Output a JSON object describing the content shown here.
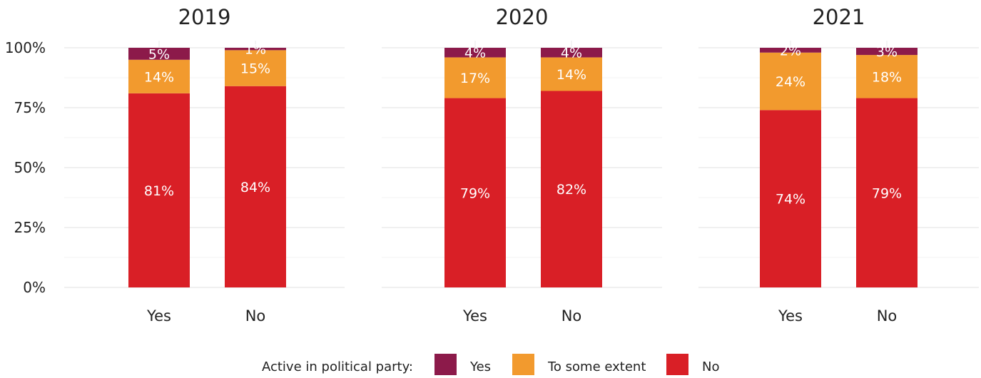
{
  "chart_data": {
    "type": "bar",
    "stacked": true,
    "y_axis": {
      "ylim": [
        0,
        100
      ],
      "ticks": [
        0,
        25,
        50,
        75,
        100
      ],
      "tick_labels": [
        "0%",
        "25%",
        "50%",
        "75%",
        "100%"
      ]
    },
    "grid": true,
    "categories": [
      "Yes",
      "No"
    ],
    "panels": [
      {
        "title": "2019",
        "series": [
          {
            "name": "No",
            "values": [
              81,
              84
            ],
            "labels": [
              "81%",
              "84%"
            ]
          },
          {
            "name": "To some extent",
            "values": [
              14,
              15
            ],
            "labels": [
              "14%",
              "15%"
            ]
          },
          {
            "name": "Yes",
            "values": [
              5,
              1
            ],
            "labels": [
              "5%",
              "1%"
            ]
          }
        ]
      },
      {
        "title": "2020",
        "series": [
          {
            "name": "No",
            "values": [
              79,
              82
            ],
            "labels": [
              "79%",
              "82%"
            ]
          },
          {
            "name": "To some extent",
            "values": [
              17,
              14
            ],
            "labels": [
              "17%",
              "14%"
            ]
          },
          {
            "name": "Yes",
            "values": [
              4,
              4
            ],
            "labels": [
              "4%",
              "4%"
            ]
          }
        ]
      },
      {
        "title": "2021",
        "series": [
          {
            "name": "No",
            "values": [
              74,
              79
            ],
            "labels": [
              "74%",
              "79%"
            ]
          },
          {
            "name": "To some extent",
            "values": [
              24,
              18
            ],
            "labels": [
              "24%",
              "18%"
            ]
          },
          {
            "name": "Yes",
            "values": [
              2,
              3
            ],
            "labels": [
              "2%",
              "3%"
            ]
          }
        ]
      }
    ],
    "legend": {
      "position": "bottom",
      "title": "Active in political party:",
      "entries": [
        {
          "name": "Yes",
          "color": "#8c1a4a"
        },
        {
          "name": "To some extent",
          "color": "#f29a2e"
        },
        {
          "name": "No",
          "color": "#d91f26"
        }
      ]
    },
    "colors": {
      "Yes": "#8c1a4a",
      "To some extent": "#f29a2e",
      "No": "#d91f26"
    }
  }
}
